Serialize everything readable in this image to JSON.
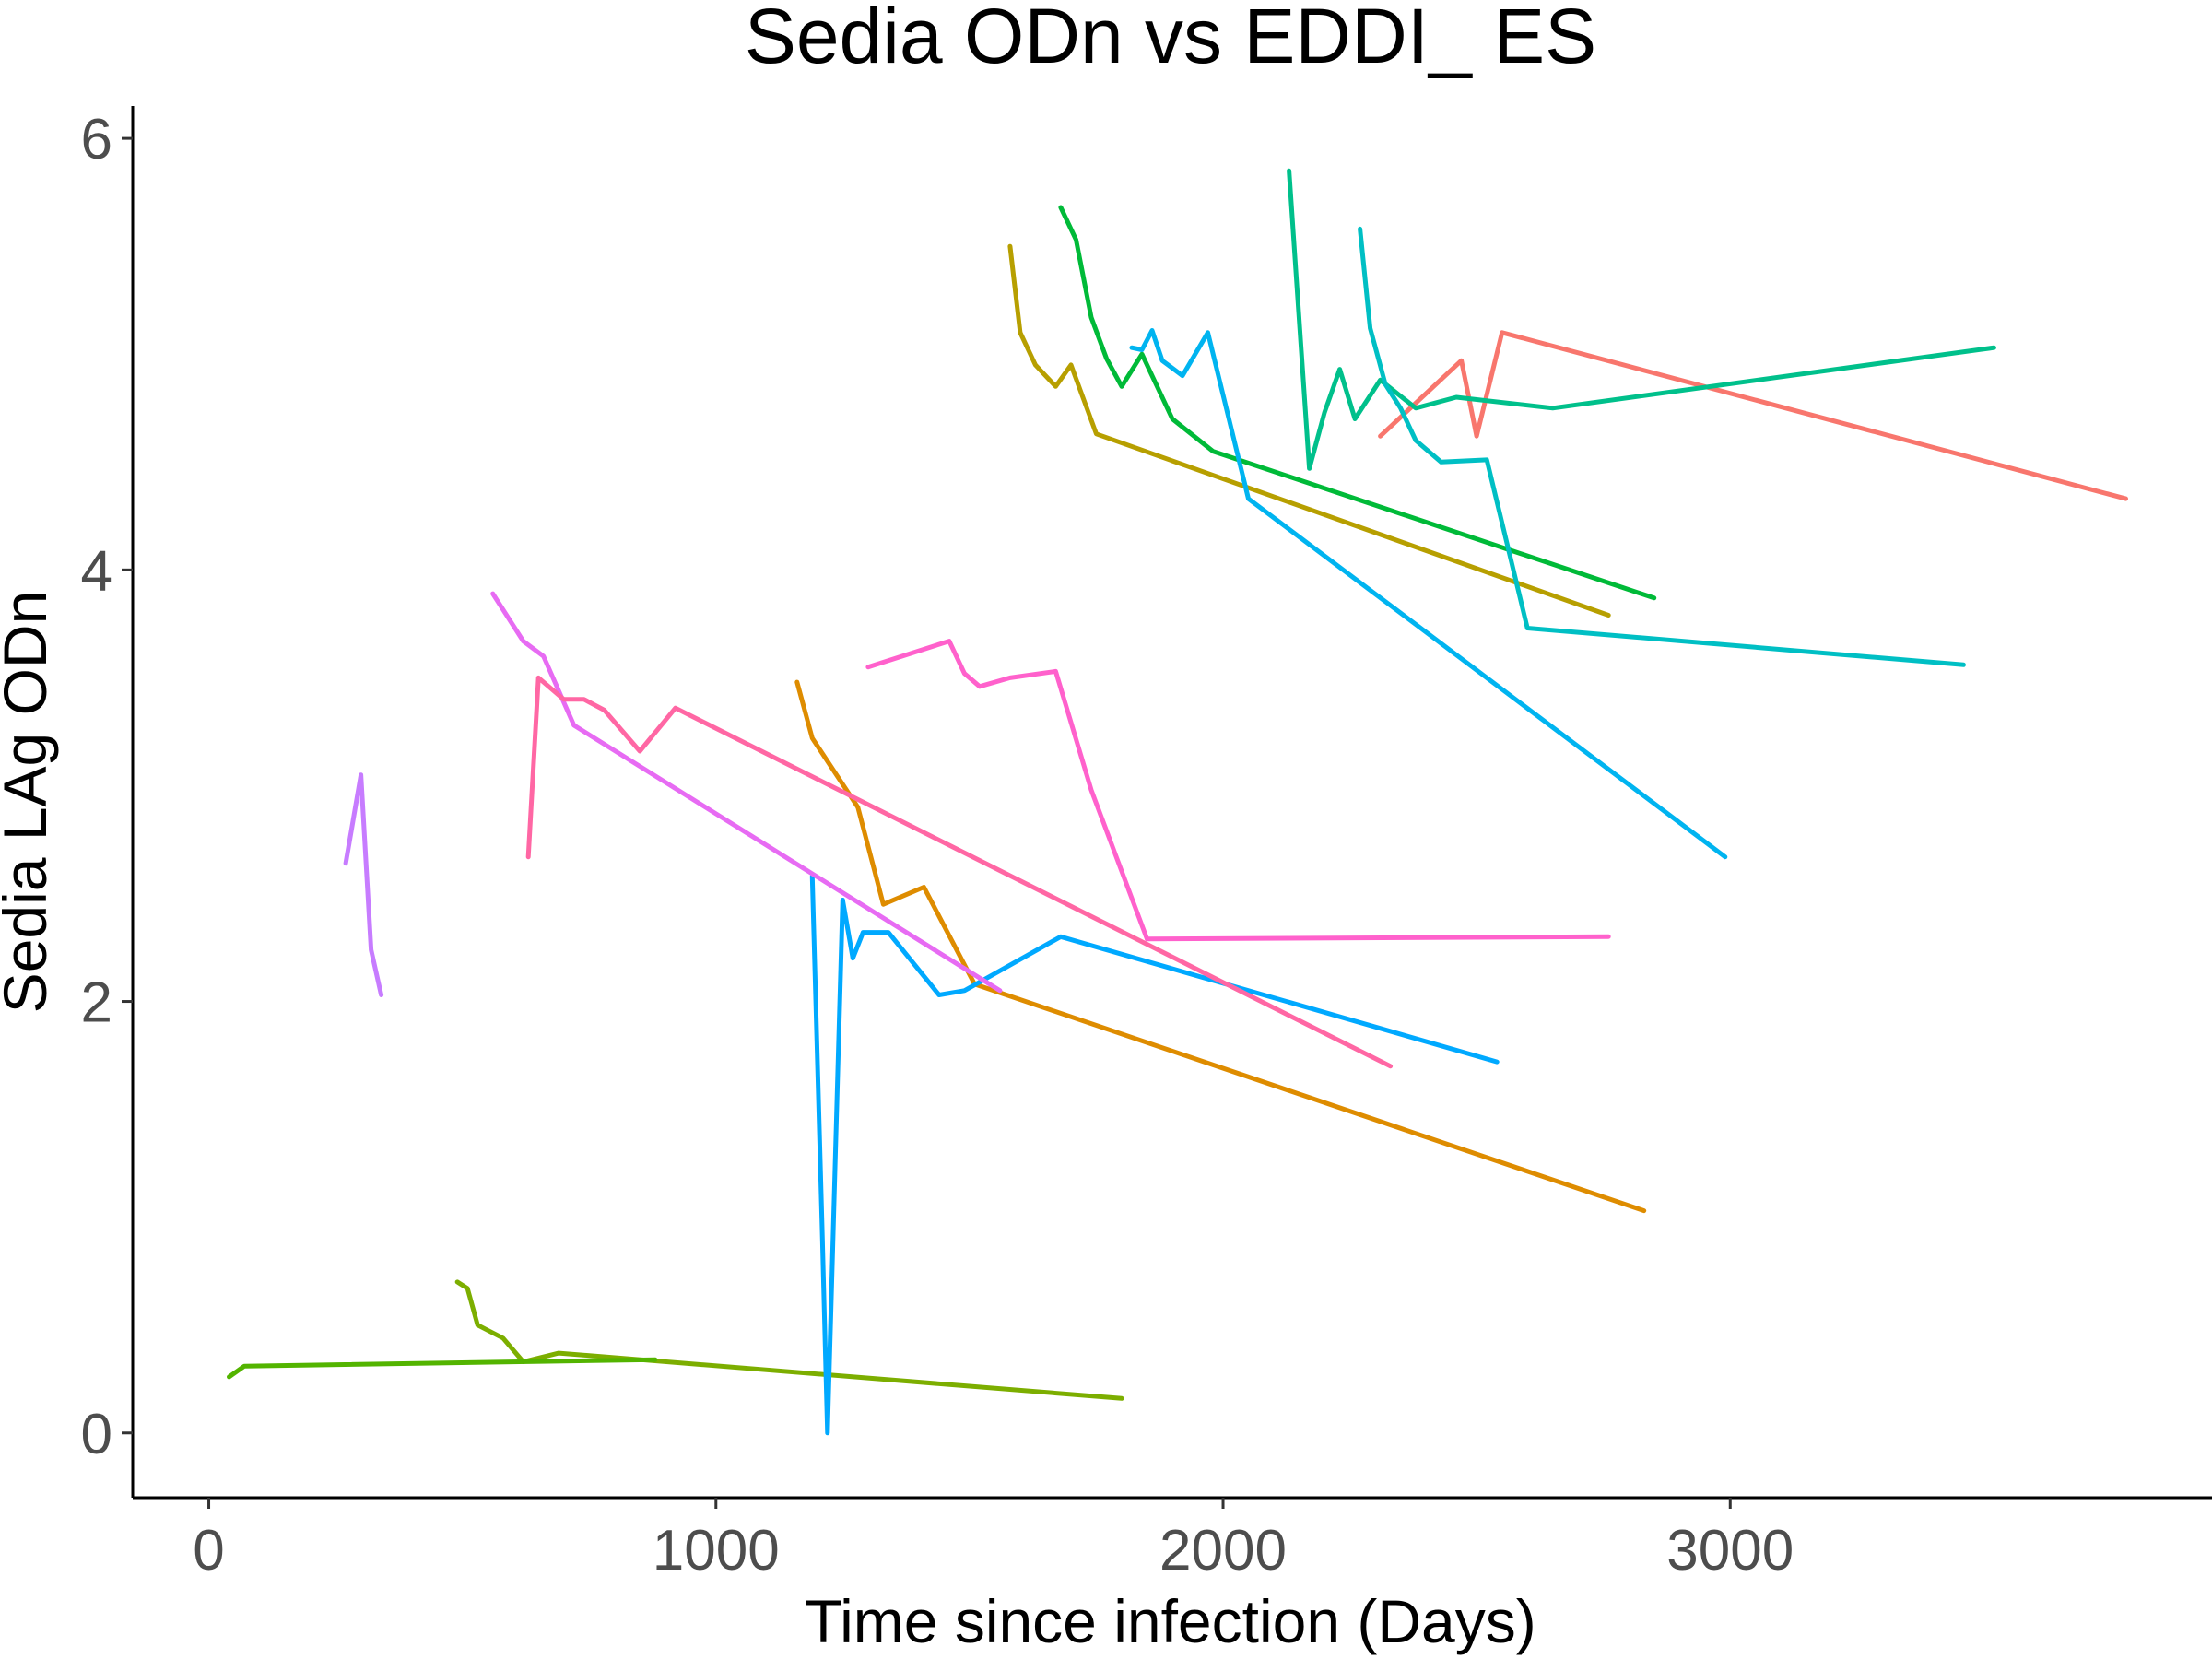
{
  "chart_data": {
    "type": "line",
    "title": "Sedia ODn vs EDDI_ ES",
    "xlabel": "Time since infection (Days)",
    "ylabel": "Sedia LAg ODn",
    "xlim": [
      -150,
      3950
    ],
    "ylim": [
      -0.3,
      6.15
    ],
    "xticks": [
      0,
      1000,
      2000,
      3000
    ],
    "xtick_labels": [
      "0",
      "1000",
      "2000",
      "3000"
    ],
    "yticks": [
      0,
      2,
      4,
      6
    ],
    "ytick_labels": [
      "0",
      "2",
      "4",
      "6"
    ],
    "grid": false,
    "legend": "none",
    "series": [
      {
        "color": "#F8766D",
        "points": [
          [
            2310,
            4.62
          ],
          [
            2470,
            4.97
          ],
          [
            2500,
            4.62
          ],
          [
            2550,
            5.1
          ],
          [
            3780,
            4.33
          ]
        ]
      },
      {
        "color": "#DE8C00",
        "points": [
          [
            1160,
            3.48
          ],
          [
            1190,
            3.22
          ],
          [
            1280,
            2.9
          ],
          [
            1330,
            2.45
          ],
          [
            1410,
            2.53
          ],
          [
            1510,
            2.08
          ],
          [
            2830,
            1.03
          ]
        ]
      },
      {
        "color": "#B79F00",
        "points": [
          [
            1580,
            5.5
          ],
          [
            1600,
            5.1
          ],
          [
            1630,
            4.95
          ],
          [
            1670,
            4.85
          ],
          [
            1700,
            4.95
          ],
          [
            1750,
            4.63
          ],
          [
            2760,
            3.79
          ]
        ]
      },
      {
        "color": "#7CAE00",
        "points": [
          [
            490,
            0.7
          ],
          [
            510,
            0.67
          ],
          [
            530,
            0.5
          ],
          [
            580,
            0.44
          ],
          [
            620,
            0.33
          ],
          [
            690,
            0.37
          ],
          [
            1800,
            0.16
          ]
        ]
      },
      {
        "color": "#53B400",
        "points": [
          [
            40,
            0.26
          ],
          [
            70,
            0.31
          ],
          [
            880,
            0.34
          ]
        ]
      },
      {
        "color": "#00BA38",
        "points": [
          [
            1680,
            5.68
          ],
          [
            1710,
            5.53
          ],
          [
            1740,
            5.17
          ],
          [
            1770,
            4.98
          ],
          [
            1800,
            4.85
          ],
          [
            1840,
            5.0
          ],
          [
            1900,
            4.7
          ],
          [
            1980,
            4.55
          ],
          [
            2850,
            3.87
          ]
        ]
      },
      {
        "color": "#00C08B",
        "points": [
          [
            2130,
            5.85
          ],
          [
            2170,
            4.47
          ],
          [
            2200,
            4.73
          ],
          [
            2230,
            4.93
          ],
          [
            2260,
            4.7
          ],
          [
            2310,
            4.88
          ],
          [
            2380,
            4.75
          ],
          [
            2460,
            4.8
          ],
          [
            2650,
            4.75
          ],
          [
            3520,
            5.03
          ]
        ]
      },
      {
        "color": "#00BFC4",
        "points": [
          [
            2270,
            5.58
          ],
          [
            2290,
            5.12
          ],
          [
            2320,
            4.86
          ],
          [
            2350,
            4.75
          ],
          [
            2380,
            4.6
          ],
          [
            2430,
            4.5
          ],
          [
            2520,
            4.51
          ],
          [
            2600,
            3.73
          ],
          [
            3460,
            3.56
          ]
        ]
      },
      {
        "color": "#00B4F0",
        "points": [
          [
            1820,
            5.03
          ],
          [
            1840,
            5.02
          ],
          [
            1860,
            5.11
          ],
          [
            1880,
            4.97
          ],
          [
            1920,
            4.9
          ],
          [
            1970,
            5.1
          ],
          [
            2050,
            4.33
          ],
          [
            2990,
            2.67
          ]
        ]
      },
      {
        "color": "#00A9FF",
        "points": [
          [
            1190,
            2.58
          ],
          [
            1210,
            0.9
          ],
          [
            1220,
            0.0
          ],
          [
            1250,
            2.47
          ],
          [
            1270,
            2.2
          ],
          [
            1290,
            2.32
          ],
          [
            1340,
            2.32
          ],
          [
            1440,
            2.03
          ],
          [
            1490,
            2.05
          ],
          [
            1680,
            2.3
          ],
          [
            2540,
            1.72
          ]
        ]
      },
      {
        "color": "#C77CFF",
        "points": [
          [
            270,
            2.64
          ],
          [
            300,
            3.05
          ],
          [
            320,
            2.24
          ],
          [
            340,
            2.03
          ]
        ]
      },
      {
        "color": "#E76BF3",
        "points": [
          [
            560,
            3.89
          ],
          [
            620,
            3.67
          ],
          [
            660,
            3.6
          ],
          [
            720,
            3.28
          ],
          [
            1560,
            2.05
          ]
        ]
      },
      {
        "color": "#FF61CC",
        "points": [
          [
            1300,
            3.55
          ],
          [
            1460,
            3.67
          ],
          [
            1490,
            3.52
          ],
          [
            1520,
            3.46
          ],
          [
            1580,
            3.5
          ],
          [
            1670,
            3.53
          ],
          [
            1740,
            2.98
          ],
          [
            1850,
            2.29
          ],
          [
            2760,
            2.3
          ]
        ]
      },
      {
        "color": "#FF67A4",
        "points": [
          [
            630,
            2.67
          ],
          [
            650,
            3.5
          ],
          [
            700,
            3.4
          ],
          [
            740,
            3.4
          ],
          [
            780,
            3.35
          ],
          [
            850,
            3.16
          ],
          [
            920,
            3.36
          ],
          [
            2330,
            1.7
          ]
        ]
      }
    ]
  }
}
